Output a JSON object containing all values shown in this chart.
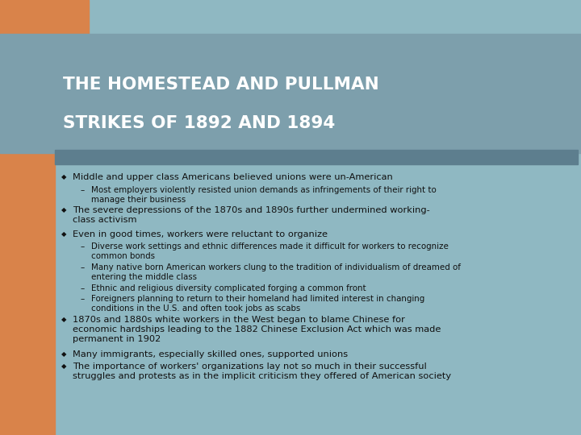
{
  "title_line1": "THE HOMESTEAD AND PULLMAN",
  "title_line2": "STRIKES OF 1892 AND 1894",
  "bg_color": "#8fb8c2",
  "orange_color": "#d9834a",
  "title_bg_color": "#7d9fac",
  "bar_color": "#5d7e8e",
  "title_color": "#ffffff",
  "text_color": "#111111",
  "bullet_symbol": "◆",
  "dash_symbol": "–",
  "title_fontsize": 15.5,
  "bullet_fontsize": 8.2,
  "sub_fontsize": 7.4,
  "bullets": [
    {
      "level": 0,
      "text": "Middle and upper class Americans believed unions were un-American"
    },
    {
      "level": 1,
      "text": "Most employers violently resisted union demands as infringements of their right to\nmanage their business"
    },
    {
      "level": 0,
      "text": "The severe depressions of the 1870s and 1890s further undermined working-\nclass activism"
    },
    {
      "level": 0,
      "text": "Even in good times, workers were reluctant to organize"
    },
    {
      "level": 1,
      "text": "Diverse work settings and ethnic differences made it difficult for workers to recognize\ncommon bonds"
    },
    {
      "level": 1,
      "text": "Many native born American workers clung to the tradition of individualism of dreamed of\nentering the middle class"
    },
    {
      "level": 1,
      "text": "Ethnic and religious diversity complicated forging a common front"
    },
    {
      "level": 1,
      "text": "Foreigners planning to return to their homeland had limited interest in changing\nconditions in the U.S. and often took jobs as scabs"
    },
    {
      "level": 0,
      "text": "1870s and 1880s white workers in the West began to blame Chinese for\neconomic hardships leading to the 1882 Chinese Exclusion Act which was made\npermanent in 1902"
    },
    {
      "level": 0,
      "text": "Many immigrants, especially skilled ones, supported unions"
    },
    {
      "level": 0,
      "text": "The importance of workers' organizations lay not so much in their successful\nstruggles and protests as in the implicit criticism they offered of American society"
    }
  ]
}
